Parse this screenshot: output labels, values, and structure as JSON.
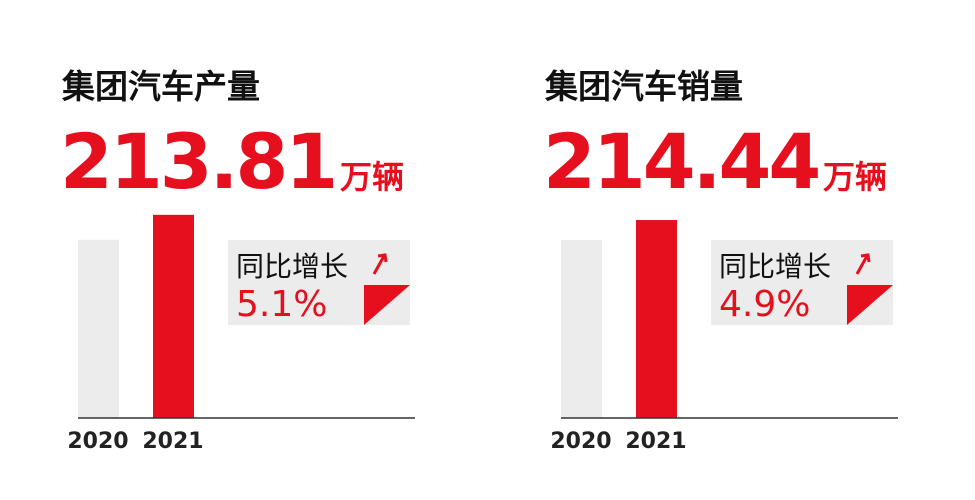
{
  "chart_data": [
    {
      "type": "bar",
      "title": "集团汽车产量",
      "headline": "213.81",
      "unit": "万辆",
      "growth_label": "同比增长",
      "growth": "5.1%",
      "categories": [
        "2020",
        "2021"
      ],
      "values": [
        203.43,
        213.81
      ],
      "colors": [
        "#ececec",
        "#e60f1e"
      ],
      "ylim": [
        129,
        220
      ]
    },
    {
      "type": "bar",
      "title": "集团汽车销量",
      "headline": "214.44",
      "unit": "万辆",
      "growth_label": "同比增长",
      "growth": "4.9%",
      "categories": [
        "2020",
        "2021"
      ],
      "values": [
        204.43,
        214.44
      ],
      "colors": [
        "#ececec",
        "#e60f1e"
      ],
      "ylim": [
        115,
        224.5
      ]
    }
  ]
}
